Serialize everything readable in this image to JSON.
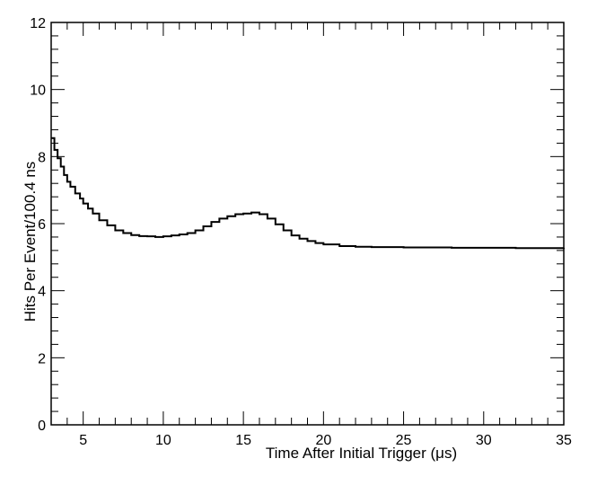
{
  "chart_data": {
    "type": "line",
    "title": "",
    "xlabel": "Time After Initial Trigger (μs)",
    "ylabel": "Hits Per Event/100.4 ns",
    "xlim": [
      3,
      35
    ],
    "ylim": [
      0,
      12
    ],
    "x_ticks": [
      5,
      10,
      15,
      20,
      25,
      30,
      35
    ],
    "y_ticks": [
      0,
      2,
      4,
      6,
      8,
      10,
      12
    ],
    "grid": false,
    "legend": "none",
    "line_color": "#000000",
    "series": [
      {
        "x": [
          3.0,
          3.2,
          3.4,
          3.6,
          3.8,
          4.0,
          4.2,
          4.5,
          4.8,
          5.0,
          5.3,
          5.6,
          6.0,
          6.5,
          7.0,
          7.5,
          8.0,
          8.5,
          9.0,
          9.5,
          10.0,
          10.5,
          11.0,
          11.5,
          12.0,
          12.5,
          13.0,
          13.5,
          14.0,
          14.5,
          15.0,
          15.5,
          16.0,
          16.5,
          17.0,
          17.5,
          18.0,
          18.5,
          19.0,
          19.5,
          20.0,
          21.0,
          22.0,
          23.0,
          24.0,
          25.0,
          26.0,
          27.0,
          28.0,
          29.0,
          30.0,
          31.0,
          32.0,
          33.0,
          34.0,
          35.0
        ],
        "y": [
          8.55,
          8.2,
          7.95,
          7.7,
          7.45,
          7.25,
          7.1,
          6.9,
          6.75,
          6.6,
          6.45,
          6.3,
          6.1,
          5.95,
          5.8,
          5.72,
          5.66,
          5.63,
          5.62,
          5.6,
          5.62,
          5.65,
          5.68,
          5.72,
          5.8,
          5.92,
          6.05,
          6.15,
          6.22,
          6.28,
          6.3,
          6.33,
          6.28,
          6.15,
          5.98,
          5.8,
          5.65,
          5.55,
          5.48,
          5.42,
          5.38,
          5.33,
          5.31,
          5.3,
          5.3,
          5.29,
          5.29,
          5.29,
          5.28,
          5.28,
          5.28,
          5.28,
          5.27,
          5.27,
          5.27,
          5.28
        ]
      }
    ]
  }
}
